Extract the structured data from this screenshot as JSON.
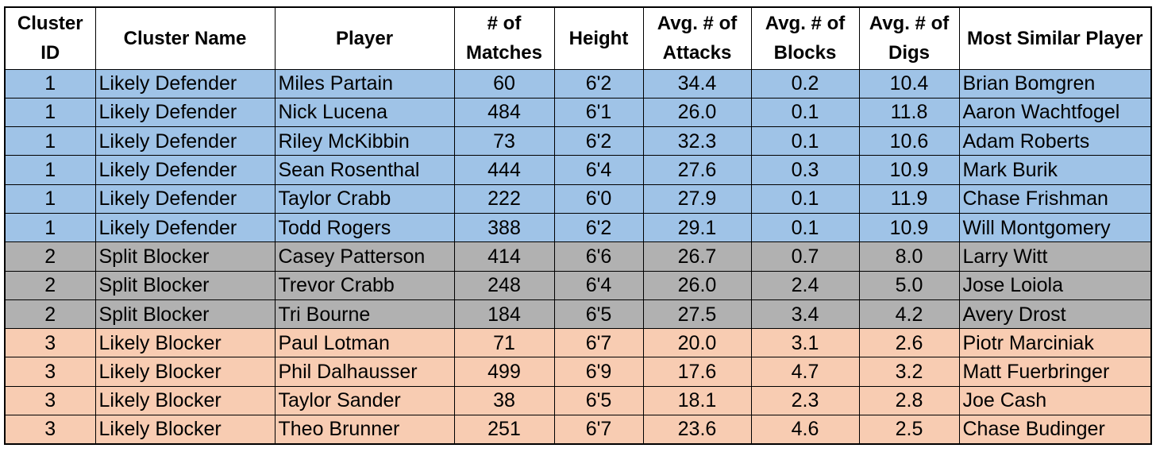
{
  "table": {
    "columns": [
      "Cluster ID",
      "Cluster Name",
      "Player",
      "# of Matches",
      "Height",
      "Avg. # of Attacks",
      "Avg. # of Blocks",
      "Avg. # of Digs",
      "Most Similar Player"
    ],
    "cluster_colors": {
      "1": "#9fc3e7",
      "2": "#b1b1b1",
      "3": "#f8ccb2"
    },
    "rows": [
      [
        "1",
        "Likely Defender",
        "Miles Partain",
        "60",
        "6'2",
        "34.4",
        "0.2",
        "10.4",
        "Brian Bomgren"
      ],
      [
        "1",
        "Likely Defender",
        "Nick Lucena",
        "484",
        "6'1",
        "26.0",
        "0.1",
        "11.8",
        "Aaron Wachtfogel"
      ],
      [
        "1",
        "Likely Defender",
        "Riley McKibbin",
        "73",
        "6'2",
        "32.3",
        "0.1",
        "10.6",
        "Adam Roberts"
      ],
      [
        "1",
        "Likely Defender",
        "Sean Rosenthal",
        "444",
        "6'4",
        "27.6",
        "0.3",
        "10.9",
        "Mark Burik"
      ],
      [
        "1",
        "Likely Defender",
        "Taylor Crabb",
        "222",
        "6'0",
        "27.9",
        "0.1",
        "11.9",
        "Chase Frishman"
      ],
      [
        "1",
        "Likely Defender",
        "Todd Rogers",
        "388",
        "6'2",
        "29.1",
        "0.1",
        "10.9",
        "Will Montgomery"
      ],
      [
        "2",
        "Split Blocker",
        "Casey Patterson",
        "414",
        "6'6",
        "26.7",
        "0.7",
        "8.0",
        "Larry Witt"
      ],
      [
        "2",
        "Split Blocker",
        "Trevor Crabb",
        "248",
        "6'4",
        "26.0",
        "2.4",
        "5.0",
        "Jose Loiola"
      ],
      [
        "2",
        "Split Blocker",
        "Tri Bourne",
        "184",
        "6'5",
        "27.5",
        "3.4",
        "4.2",
        "Avery Drost"
      ],
      [
        "3",
        "Likely Blocker",
        "Paul Lotman",
        "71",
        "6'7",
        "20.0",
        "3.1",
        "2.6",
        "Piotr Marciniak"
      ],
      [
        "3",
        "Likely Blocker",
        "Phil Dalhausser",
        "499",
        "6'9",
        "17.6",
        "4.7",
        "3.2",
        "Matt Fuerbringer"
      ],
      [
        "3",
        "Likely Blocker",
        "Taylor Sander",
        "38",
        "6'5",
        "18.1",
        "2.3",
        "2.8",
        "Joe Cash"
      ],
      [
        "3",
        "Likely Blocker",
        "Theo Brunner",
        "251",
        "6'7",
        "23.6",
        "4.6",
        "2.5",
        "Chase Budinger"
      ]
    ]
  }
}
